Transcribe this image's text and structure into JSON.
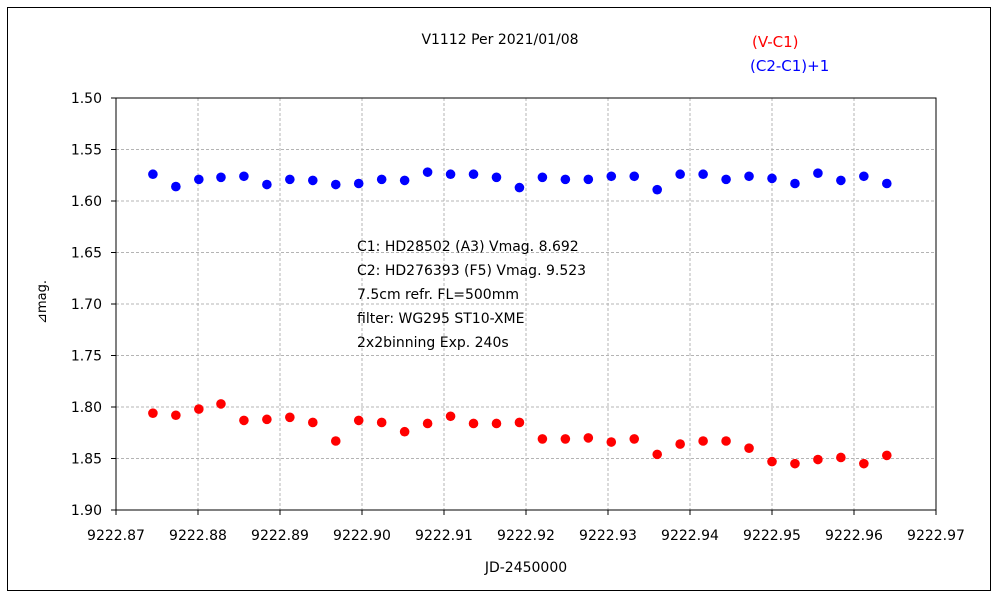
{
  "chart_data": {
    "type": "scatter",
    "title": "V1112 Per   2021/01/08",
    "xlabel": "JD-2450000",
    "ylabel": "⊿mag.",
    "xlim": [
      9222.87,
      9222.97
    ],
    "ylim": [
      1.9,
      1.5
    ],
    "y_inverted": true,
    "grid": true,
    "legend_position": "top-right",
    "x_ticks": [
      "9222.87",
      "9222.88",
      "9222.89",
      "9222.90",
      "9222.91",
      "9222.92",
      "9222.93",
      "9222.94",
      "9222.95",
      "9222.96",
      "9222.97"
    ],
    "y_ticks": [
      "1.50",
      "1.55",
      "1.60",
      "1.65",
      "1.70",
      "1.75",
      "1.80",
      "1.85",
      "1.90"
    ],
    "annotations": [
      "C1: HD28502 (A3) Vmag. 8.692",
      "C2: HD276393 (F5) Vmag. 9.523",
      "7.5cm refr. FL=500mm",
      "filter: WG295   ST10-XME",
      "2x2binning  Exp. 240s"
    ],
    "series": [
      {
        "name": "(V-C1)",
        "color": "#ff0000",
        "x": [
          9222.8745,
          9222.8773,
          9222.8801,
          9222.8828,
          9222.8856,
          9222.8884,
          9222.8912,
          9222.894,
          9222.8968,
          9222.8996,
          9222.9024,
          9222.9052,
          9222.908,
          9222.9108,
          9222.9136,
          9222.9164,
          9222.9192,
          9222.922,
          9222.9248,
          9222.9276,
          9222.9304,
          9222.9332,
          9222.936,
          9222.9388,
          9222.9416,
          9222.9444,
          9222.9472,
          9222.95,
          9222.9528,
          9222.9556,
          9222.9584,
          9222.9612,
          9222.964
        ],
        "y": [
          1.806,
          1.808,
          1.802,
          1.797,
          1.813,
          1.812,
          1.81,
          1.815,
          1.833,
          1.813,
          1.815,
          1.824,
          1.816,
          1.809,
          1.816,
          1.816,
          1.815,
          1.831,
          1.831,
          1.83,
          1.834,
          1.831,
          1.846,
          1.836,
          1.833,
          1.833,
          1.84,
          1.853,
          1.855,
          1.851,
          1.849,
          1.855,
          1.847
        ]
      },
      {
        "name": "(C2-C1)+1",
        "color": "#0000ff",
        "x": [
          9222.8745,
          9222.8773,
          9222.8801,
          9222.8828,
          9222.8856,
          9222.8884,
          9222.8912,
          9222.894,
          9222.8968,
          9222.8996,
          9222.9024,
          9222.9052,
          9222.908,
          9222.9108,
          9222.9136,
          9222.9164,
          9222.9192,
          9222.922,
          9222.9248,
          9222.9276,
          9222.9304,
          9222.9332,
          9222.936,
          9222.9388,
          9222.9416,
          9222.9444,
          9222.9472,
          9222.95,
          9222.9528,
          9222.9556,
          9222.9584,
          9222.9612,
          9222.964
        ],
        "y": [
          1.574,
          1.586,
          1.579,
          1.577,
          1.576,
          1.584,
          1.579,
          1.58,
          1.584,
          1.583,
          1.579,
          1.58,
          1.572,
          1.574,
          1.574,
          1.577,
          1.587,
          1.577,
          1.579,
          1.579,
          1.576,
          1.576,
          1.589,
          1.574,
          1.574,
          1.579,
          1.576,
          1.578,
          1.583,
          1.573,
          1.58,
          1.576,
          1.583
        ]
      }
    ]
  }
}
